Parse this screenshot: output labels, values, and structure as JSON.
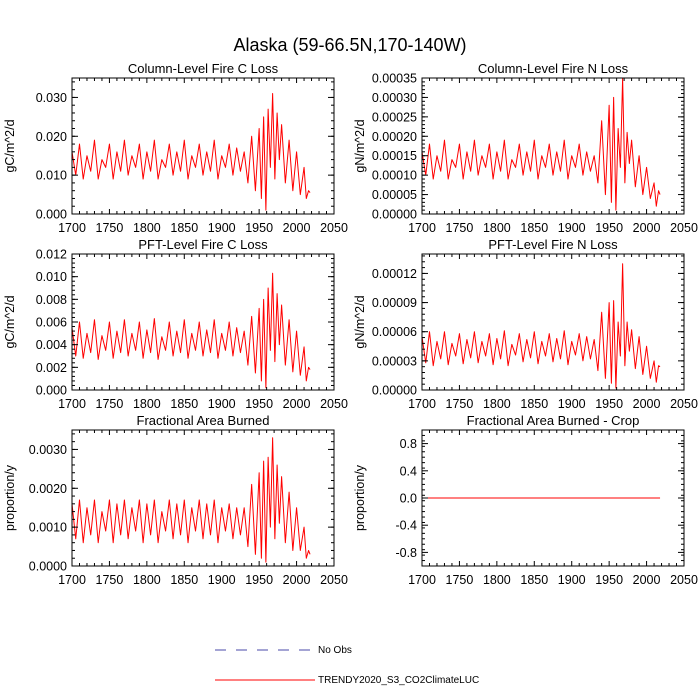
{
  "title": "Alaska (59-66.5N,170-140W)",
  "colors": {
    "model": "#ff0000",
    "obs": "#4a4aa8",
    "axis": "#000000"
  },
  "legend": [
    {
      "label": "No Obs",
      "style": "dashed",
      "color": "#4a4aa8"
    },
    {
      "label": "TRENDY2020_S3_CO2ClimateLUC",
      "style": "solid",
      "color": "#ff0000"
    }
  ],
  "chart_data": [
    {
      "type": "line",
      "title": "Column-Level Fire C Loss",
      "ylabel": "gC/m^2/d",
      "xlim": [
        1700,
        2050
      ],
      "ylim": [
        0,
        0.035
      ],
      "xticks": [
        1700,
        1750,
        1800,
        1850,
        1900,
        1950,
        2000,
        2050
      ],
      "yticks": [
        "0.000",
        "0.010",
        "0.020",
        "0.030"
      ],
      "ytick_values": [
        0,
        0.01,
        0.02,
        0.03
      ],
      "series": [
        {
          "name": "TRENDY2020_S3_CO2ClimateLUC",
          "x": [
            1700,
            1705,
            1710,
            1715,
            1720,
            1725,
            1730,
            1735,
            1740,
            1745,
            1750,
            1755,
            1760,
            1765,
            1770,
            1775,
            1780,
            1785,
            1790,
            1795,
            1800,
            1805,
            1810,
            1815,
            1820,
            1825,
            1830,
            1835,
            1840,
            1845,
            1850,
            1855,
            1860,
            1865,
            1870,
            1875,
            1880,
            1885,
            1890,
            1895,
            1900,
            1905,
            1910,
            1915,
            1920,
            1925,
            1930,
            1935,
            1940,
            1945,
            1950,
            1953,
            1956,
            1959,
            1962,
            1965,
            1968,
            1971,
            1974,
            1977,
            1980,
            1985,
            1990,
            1995,
            2000,
            2005,
            2010,
            2013,
            2016,
            2018
          ],
          "values": [
            0.016,
            0.01,
            0.018,
            0.009,
            0.015,
            0.011,
            0.019,
            0.009,
            0.014,
            0.012,
            0.018,
            0.009,
            0.016,
            0.011,
            0.019,
            0.01,
            0.015,
            0.012,
            0.018,
            0.009,
            0.016,
            0.011,
            0.019,
            0.009,
            0.014,
            0.012,
            0.018,
            0.01,
            0.016,
            0.011,
            0.019,
            0.009,
            0.015,
            0.012,
            0.018,
            0.01,
            0.016,
            0.011,
            0.019,
            0.009,
            0.015,
            0.012,
            0.018,
            0.01,
            0.017,
            0.011,
            0.016,
            0.008,
            0.02,
            0.006,
            0.022,
            0.004,
            0.025,
            0.001,
            0.027,
            0.012,
            0.031,
            0.009,
            0.026,
            0.014,
            0.023,
            0.008,
            0.019,
            0.006,
            0.016,
            0.005,
            0.012,
            0.004,
            0.006,
            0.0055
          ]
        }
      ]
    },
    {
      "type": "line",
      "title": "Column-Level Fire N Loss",
      "ylabel": "gN/m^2/d",
      "xlim": [
        1700,
        2050
      ],
      "ylim": [
        0,
        0.00035
      ],
      "xticks": [
        1700,
        1750,
        1800,
        1850,
        1900,
        1950,
        2000,
        2050
      ],
      "yticks": [
        "0.00000",
        "0.00005",
        "0.00010",
        "0.00015",
        "0.00020",
        "0.00025",
        "0.00030",
        "0.00035"
      ],
      "ytick_values": [
        0,
        5e-05,
        0.0001,
        0.00015,
        0.0002,
        0.00025,
        0.0003,
        0.00035
      ],
      "series": [
        {
          "name": "TRENDY2020_S3_CO2ClimateLUC",
          "x": [
            1700,
            1705,
            1710,
            1715,
            1720,
            1725,
            1730,
            1735,
            1740,
            1745,
            1750,
            1755,
            1760,
            1765,
            1770,
            1775,
            1780,
            1785,
            1790,
            1795,
            1800,
            1805,
            1810,
            1815,
            1820,
            1825,
            1830,
            1835,
            1840,
            1845,
            1850,
            1855,
            1860,
            1865,
            1870,
            1875,
            1880,
            1885,
            1890,
            1895,
            1900,
            1905,
            1910,
            1915,
            1920,
            1925,
            1930,
            1935,
            1940,
            1945,
            1950,
            1953,
            1956,
            1959,
            1962,
            1965,
            1968,
            1971,
            1974,
            1977,
            1980,
            1985,
            1990,
            1995,
            2000,
            2005,
            2010,
            2013,
            2016,
            2018
          ],
          "values": [
            0.00016,
            0.0001,
            0.00018,
            9e-05,
            0.00015,
            0.00011,
            0.00019,
            9e-05,
            0.00014,
            0.00012,
            0.00018,
            9e-05,
            0.00016,
            0.00011,
            0.00019,
            0.0001,
            0.00015,
            0.00012,
            0.00018,
            9e-05,
            0.00016,
            0.00011,
            0.00019,
            9e-05,
            0.00014,
            0.00012,
            0.00018,
            0.0001,
            0.00016,
            0.00011,
            0.00019,
            9e-05,
            0.00015,
            0.00012,
            0.00018,
            0.0001,
            0.00016,
            0.00011,
            0.00019,
            9e-05,
            0.00015,
            0.00012,
            0.00018,
            0.0001,
            0.00016,
            0.00011,
            0.00015,
            8e-05,
            0.00024,
            5e-05,
            0.00028,
            3e-05,
            0.0003,
            1e-05,
            0.00022,
            0.00012,
            0.00035,
            8e-05,
            0.00021,
            0.00013,
            0.00019,
            7e-05,
            0.00015,
            5e-05,
            0.00012,
            4e-05,
            8e-05,
            2e-05,
            6e-05,
            5e-05
          ]
        }
      ]
    },
    {
      "type": "line",
      "title": "PFT-Level Fire C Loss",
      "ylabel": "gC/m^2/d",
      "xlim": [
        1700,
        2050
      ],
      "ylim": [
        0,
        0.012
      ],
      "xticks": [
        1700,
        1750,
        1800,
        1850,
        1900,
        1950,
        2000,
        2050
      ],
      "yticks": [
        "0.000",
        "0.002",
        "0.004",
        "0.006",
        "0.008",
        "0.010",
        "0.012"
      ],
      "ytick_values": [
        0,
        0.002,
        0.004,
        0.006,
        0.008,
        0.01,
        0.012
      ],
      "series": [
        {
          "name": "TRENDY2020_S3_CO2ClimateLUC",
          "x": [
            1700,
            1705,
            1710,
            1715,
            1720,
            1725,
            1730,
            1735,
            1740,
            1745,
            1750,
            1755,
            1760,
            1765,
            1770,
            1775,
            1780,
            1785,
            1790,
            1795,
            1800,
            1805,
            1810,
            1815,
            1820,
            1825,
            1830,
            1835,
            1840,
            1845,
            1850,
            1855,
            1860,
            1865,
            1870,
            1875,
            1880,
            1885,
            1890,
            1895,
            1900,
            1905,
            1910,
            1915,
            1920,
            1925,
            1930,
            1935,
            1940,
            1945,
            1950,
            1953,
            1956,
            1959,
            1962,
            1965,
            1968,
            1971,
            1974,
            1977,
            1980,
            1985,
            1990,
            1995,
            2000,
            2005,
            2010,
            2013,
            2016,
            2018
          ],
          "values": [
            0.0055,
            0.003,
            0.006,
            0.0028,
            0.005,
            0.0033,
            0.0062,
            0.0027,
            0.0048,
            0.0035,
            0.006,
            0.0028,
            0.0052,
            0.0033,
            0.0062,
            0.003,
            0.005,
            0.0035,
            0.006,
            0.0028,
            0.0053,
            0.0033,
            0.0063,
            0.0027,
            0.0047,
            0.0035,
            0.006,
            0.003,
            0.0052,
            0.0033,
            0.0062,
            0.0028,
            0.005,
            0.0035,
            0.006,
            0.003,
            0.0053,
            0.0033,
            0.0062,
            0.0028,
            0.005,
            0.0035,
            0.006,
            0.003,
            0.0055,
            0.0033,
            0.0052,
            0.0022,
            0.0065,
            0.0015,
            0.0072,
            0.0008,
            0.008,
            0.0002,
            0.009,
            0.0035,
            0.0103,
            0.0025,
            0.0085,
            0.004,
            0.0075,
            0.0022,
            0.0062,
            0.0016,
            0.0052,
            0.0013,
            0.0038,
            0.0008,
            0.002,
            0.0018
          ]
        }
      ]
    },
    {
      "type": "line",
      "title": "PFT-Level Fire N Loss",
      "ylabel": "gN/m^2/d",
      "xlim": [
        1700,
        2050
      ],
      "ylim": [
        0,
        0.00014
      ],
      "xticks": [
        1700,
        1750,
        1800,
        1850,
        1900,
        1950,
        2000,
        2050
      ],
      "yticks": [
        "0.00000",
        "0.00003",
        "0.00006",
        "0.00009",
        "0.00012"
      ],
      "ytick_values": [
        0,
        3e-05,
        6e-05,
        9e-05,
        0.00012
      ],
      "series": [
        {
          "name": "TRENDY2020_S3_CO2ClimateLUC",
          "x": [
            1700,
            1705,
            1710,
            1715,
            1720,
            1725,
            1730,
            1735,
            1740,
            1745,
            1750,
            1755,
            1760,
            1765,
            1770,
            1775,
            1780,
            1785,
            1790,
            1795,
            1800,
            1805,
            1810,
            1815,
            1820,
            1825,
            1830,
            1835,
            1840,
            1845,
            1850,
            1855,
            1860,
            1865,
            1870,
            1875,
            1880,
            1885,
            1890,
            1895,
            1900,
            1905,
            1910,
            1915,
            1920,
            1925,
            1930,
            1935,
            1940,
            1945,
            1950,
            1953,
            1956,
            1959,
            1962,
            1965,
            1968,
            1971,
            1974,
            1977,
            1980,
            1985,
            1990,
            1995,
            2000,
            2005,
            2010,
            2013,
            2016,
            2018
          ],
          "values": [
            5.5e-05,
            2.8e-05,
            6e-05,
            2.5e-05,
            5e-05,
            3.2e-05,
            6e-05,
            2.6e-05,
            4.8e-05,
            3.5e-05,
            5.8e-05,
            2.7e-05,
            5.2e-05,
            3.3e-05,
            6e-05,
            2.8e-05,
            5e-05,
            3.5e-05,
            5.8e-05,
            2.6e-05,
            5.3e-05,
            3.2e-05,
            6.1e-05,
            2.5e-05,
            4.7e-05,
            3.6e-05,
            5.8e-05,
            2.9e-05,
            5.2e-05,
            3.3e-05,
            6e-05,
            2.7e-05,
            5e-05,
            3.5e-05,
            5.8e-05,
            2.9e-05,
            5.3e-05,
            3.2e-05,
            6.1e-05,
            2.6e-05,
            5e-05,
            3.6e-05,
            5.8e-05,
            3e-05,
            5.5e-05,
            3.2e-05,
            5.2e-05,
            2e-05,
            8e-05,
            1.2e-05,
            9e-05,
            7e-06,
            9.2e-05,
            2e-06,
            7e-05,
            3.5e-05,
            0.00013,
            2.5e-05,
            7e-05,
            4e-05,
            6.2e-05,
            2.2e-05,
            5.5e-05,
            1.6e-05,
            4.5e-05,
            1.2e-05,
            3e-05,
            8e-06,
            2.5e-05,
            2.4e-05
          ]
        }
      ]
    },
    {
      "type": "line",
      "title": "Fractional Area Burned",
      "ylabel": "proportion/y",
      "xlim": [
        1700,
        2050
      ],
      "ylim": [
        0,
        0.0035
      ],
      "xticks": [
        1700,
        1750,
        1800,
        1850,
        1900,
        1950,
        2000,
        2050
      ],
      "yticks": [
        "0.0000",
        "0.0010",
        "0.0020",
        "0.0030"
      ],
      "ytick_values": [
        0,
        0.001,
        0.002,
        0.003
      ],
      "series": [
        {
          "name": "TRENDY2020_S3_CO2ClimateLUC",
          "x": [
            1700,
            1705,
            1710,
            1715,
            1720,
            1725,
            1730,
            1735,
            1740,
            1745,
            1750,
            1755,
            1760,
            1765,
            1770,
            1775,
            1780,
            1785,
            1790,
            1795,
            1800,
            1805,
            1810,
            1815,
            1820,
            1825,
            1830,
            1835,
            1840,
            1845,
            1850,
            1855,
            1860,
            1865,
            1870,
            1875,
            1880,
            1885,
            1890,
            1895,
            1900,
            1905,
            1910,
            1915,
            1920,
            1925,
            1930,
            1935,
            1940,
            1945,
            1950,
            1953,
            1956,
            1959,
            1962,
            1965,
            1968,
            1971,
            1974,
            1977,
            1980,
            1985,
            1990,
            1995,
            2000,
            2005,
            2010,
            2013,
            2016,
            2018
          ],
          "values": [
            0.0016,
            0.0007,
            0.0017,
            0.0006,
            0.0015,
            0.0008,
            0.0017,
            0.0006,
            0.0014,
            0.0009,
            0.0017,
            0.0006,
            0.0016,
            0.0008,
            0.0017,
            0.0007,
            0.0015,
            0.0009,
            0.0017,
            0.0006,
            0.0016,
            0.0008,
            0.0017,
            0.0006,
            0.0014,
            0.0009,
            0.0017,
            0.0007,
            0.0016,
            0.0008,
            0.0017,
            0.0006,
            0.0015,
            0.0009,
            0.0017,
            0.0007,
            0.0016,
            0.0008,
            0.0017,
            0.0006,
            0.0015,
            0.0009,
            0.0016,
            0.0007,
            0.0015,
            0.0008,
            0.0015,
            0.0005,
            0.0021,
            0.0003,
            0.0024,
            0.0002,
            0.0027,
            0.0001,
            0.0028,
            0.001,
            0.0033,
            0.0007,
            0.0026,
            0.0011,
            0.0023,
            0.0006,
            0.0019,
            0.0004,
            0.0015,
            0.0004,
            0.001,
            0.0002,
            0.0004,
            0.0003
          ]
        }
      ]
    },
    {
      "type": "line",
      "title": "Fractional Area Burned - Crop",
      "ylabel": "proportion/y",
      "xlim": [
        1700,
        2050
      ],
      "ylim": [
        -1,
        1
      ],
      "xticks": [
        1700,
        1750,
        1800,
        1850,
        1900,
        1950,
        2000,
        2050
      ],
      "yticks": [
        "-0.8",
        "-0.4",
        "0.0",
        "0.4",
        "0.8"
      ],
      "ytick_values": [
        -0.8,
        -0.4,
        0,
        0.4,
        0.8
      ],
      "series": [
        {
          "name": "TRENDY2020_S3_CO2ClimateLUC",
          "x": [
            1700,
            2018
          ],
          "values": [
            0,
            0
          ]
        }
      ]
    }
  ]
}
